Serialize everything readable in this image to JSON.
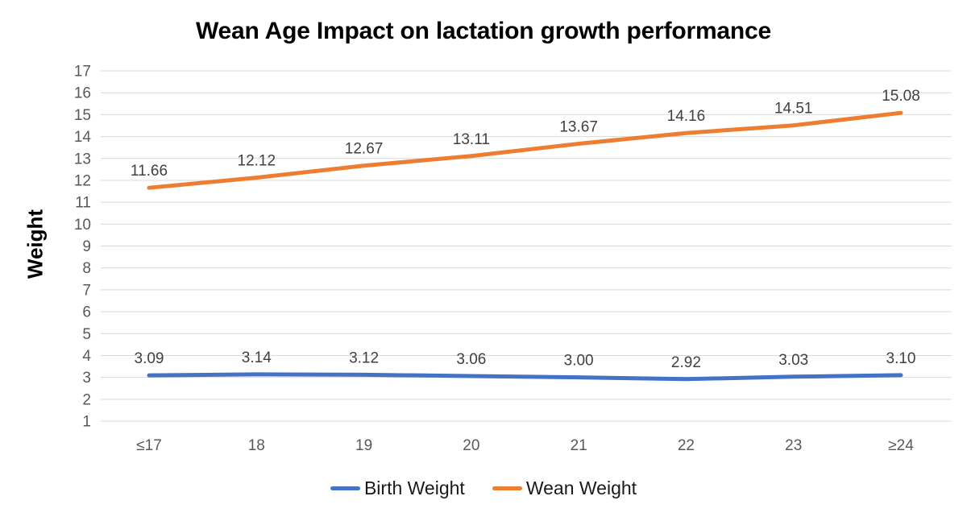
{
  "chart_data": {
    "type": "line",
    "title": "Wean Age Impact on lactation growth performance",
    "categories": [
      "≤17",
      "18",
      "19",
      "20",
      "21",
      "22",
      "23",
      "≥24"
    ],
    "series": [
      {
        "name": "Birth Weight",
        "color": "#4472C4",
        "values": [
          3.09,
          3.14,
          3.12,
          3.06,
          3.0,
          2.92,
          3.03,
          3.1
        ]
      },
      {
        "name": "Wean Weight",
        "color": "#ED7D31",
        "values": [
          11.66,
          12.12,
          12.67,
          13.11,
          13.67,
          14.16,
          14.51,
          15.08
        ]
      }
    ],
    "xlabel": "",
    "ylabel": "Weight",
    "ylim": [
      1,
      17
    ],
    "ytick_step": 1,
    "grid": true,
    "legend_position": "bottom",
    "data_labels": true,
    "data_label_decimals": 2,
    "colors": {
      "gridline": "#D9D9D9",
      "tick_label": "#595959",
      "data_label": "#404040",
      "title": "#000000"
    }
  }
}
